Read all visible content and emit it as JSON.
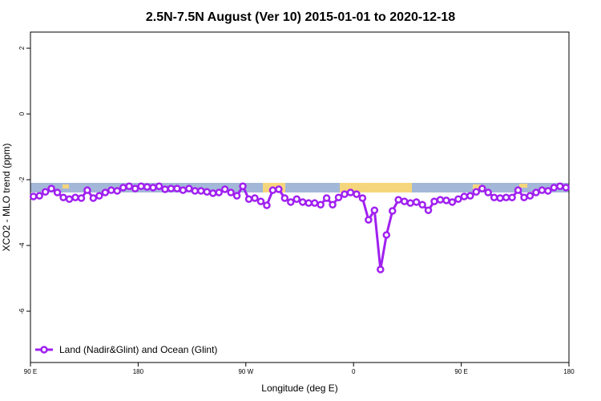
{
  "chart_data": {
    "type": "line",
    "title": "2.5N-7.5N August (Ver 10)   2015-01-01 to 2020-12-18",
    "x_label": "Longitude (deg E)",
    "y_label": "XCO2 - MLO trend (ppm)",
    "xlim": [
      90,
      540
    ],
    "ylim": [
      -7.56,
      2.49
    ],
    "xticks": [
      {
        "value": 90,
        "label": "90 E"
      },
      {
        "value": 180,
        "label": "180"
      },
      {
        "value": 270,
        "label": "90 W"
      },
      {
        "value": 360,
        "label": "0"
      },
      {
        "value": 450,
        "label": "90 E"
      },
      {
        "value": 540,
        "label": "180"
      }
    ],
    "yticks": [
      2,
      0,
      -2,
      -4,
      -6
    ],
    "legend": "bottom-left",
    "x": [
      92.5,
      97.5,
      102.5,
      107.5,
      112.5,
      117.5,
      122.5,
      127.5,
      132.5,
      137.5,
      142.5,
      147.5,
      152.5,
      157.5,
      162.5,
      167.5,
      172.5,
      177.5,
      182.5,
      187.5,
      192.5,
      197.5,
      202.5,
      207.5,
      212.5,
      217.5,
      222.5,
      227.5,
      232.5,
      237.5,
      242.5,
      247.5,
      252.5,
      257.5,
      262.5,
      267.5,
      272.5,
      277.5,
      282.5,
      287.5,
      292.5,
      297.5,
      302.5,
      307.5,
      312.5,
      317.5,
      322.5,
      327.5,
      332.5,
      337.5,
      342.5,
      347.5,
      352.5,
      357.5,
      362.5,
      367.5,
      372.5,
      377.5,
      382.5,
      387.5,
      392.5,
      397.5,
      402.5,
      407.5,
      412.5,
      417.5,
      422.5,
      427.5,
      432.5,
      437.5,
      442.5,
      447.5,
      452.5,
      457.5,
      462.5,
      467.5,
      472.5,
      477.5,
      482.5,
      487.5,
      492.5,
      497.5,
      502.5,
      507.5,
      512.5,
      517.5,
      522.5,
      527.5,
      532.5,
      537.5
    ],
    "series": [
      {
        "name": "Land (Nadir&Glint) and Ocean (Glint)",
        "color": "#a020f0",
        "values": [
          -2.51,
          -2.49,
          -2.37,
          -2.27,
          -2.39,
          -2.54,
          -2.59,
          -2.54,
          -2.56,
          -2.32,
          -2.56,
          -2.49,
          -2.39,
          -2.32,
          -2.34,
          -2.24,
          -2.2,
          -2.27,
          -2.2,
          -2.22,
          -2.24,
          -2.2,
          -2.29,
          -2.27,
          -2.27,
          -2.32,
          -2.27,
          -2.34,
          -2.34,
          -2.37,
          -2.41,
          -2.39,
          -2.29,
          -2.39,
          -2.49,
          -2.2,
          -2.59,
          -2.56,
          -2.66,
          -2.78,
          -2.32,
          -2.29,
          -2.56,
          -2.68,
          -2.59,
          -2.68,
          -2.71,
          -2.71,
          -2.76,
          -2.56,
          -2.76,
          -2.54,
          -2.44,
          -2.39,
          -2.44,
          -2.56,
          -3.22,
          -2.93,
          -4.73,
          -3.68,
          -2.95,
          -2.61,
          -2.66,
          -2.71,
          -2.68,
          -2.76,
          -2.93,
          -2.66,
          -2.61,
          -2.63,
          -2.68,
          -2.59,
          -2.51,
          -2.49,
          -2.37,
          -2.27,
          -2.39,
          -2.54,
          -2.56,
          -2.54,
          -2.54,
          -2.32,
          -2.54,
          -2.49,
          -2.39,
          -2.32,
          -2.34,
          -2.24,
          -2.2,
          -2.24
        ]
      }
    ]
  }
}
